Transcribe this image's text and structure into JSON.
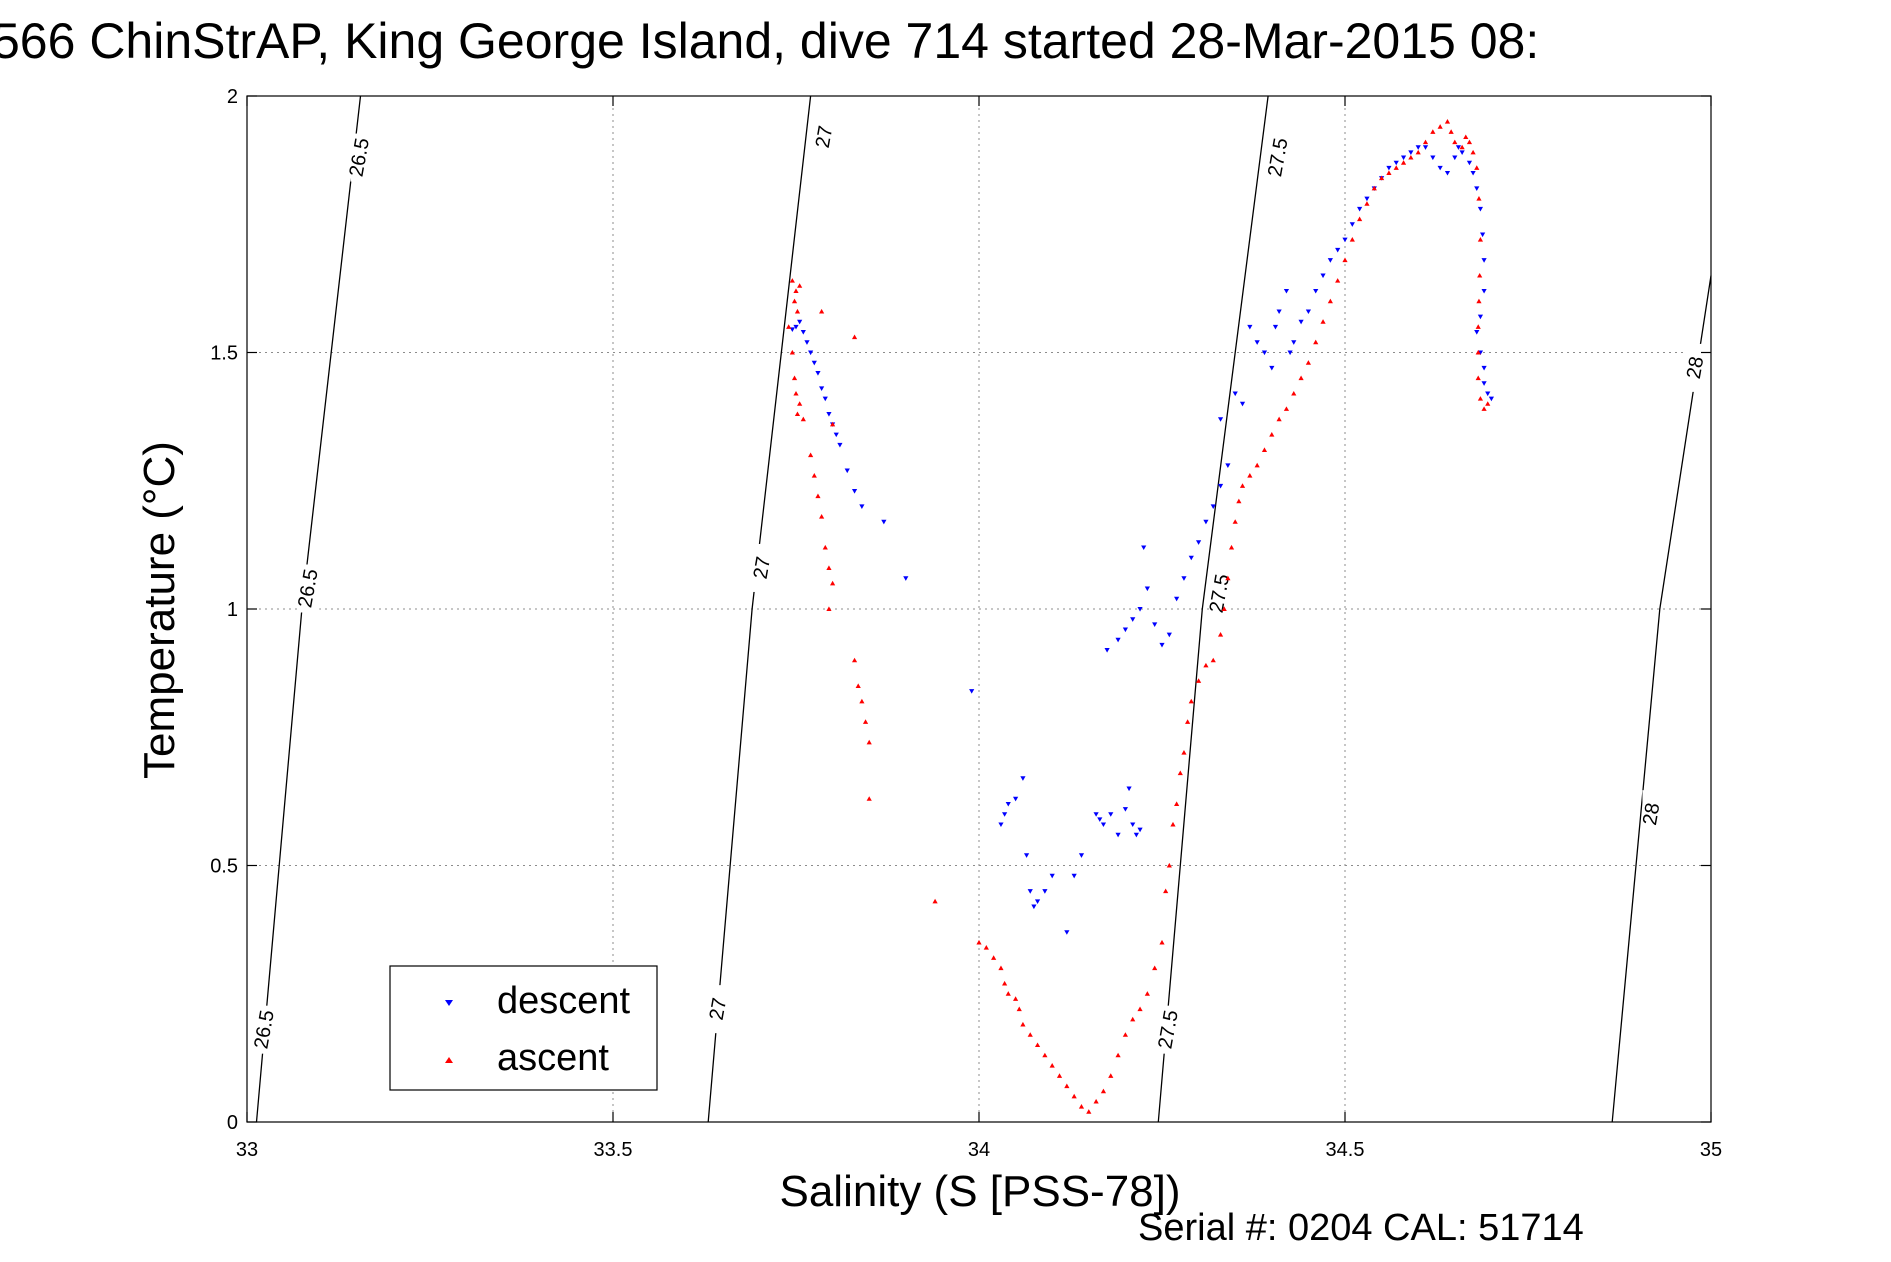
{
  "chart_data": {
    "type": "scatter",
    "title": "566 ChinStrAP, King George Island, dive 714 started 28-Mar-2015 08:",
    "xlabel": "Salinity (S [PSS-78])",
    "ylabel": "Temperature (°C)",
    "xlim": [
      33,
      35
    ],
    "ylim": [
      0,
      2
    ],
    "xticks": [
      33,
      33.5,
      34,
      34.5,
      35
    ],
    "yticks": [
      0,
      0.5,
      1,
      1.5,
      2
    ],
    "xtick_labels": [
      "33",
      "33.5",
      "34",
      "34.5",
      "35"
    ],
    "ytick_labels": [
      "0",
      "0.5",
      "1",
      "1.5",
      "2"
    ],
    "grid": true,
    "legend_position": "lower-left",
    "series": [
      {
        "name": "descent",
        "marker": "down-triangle",
        "color": "#0000ff",
        "points": [
          [
            33.745,
            1.545
          ],
          [
            33.75,
            1.55
          ],
          [
            33.755,
            1.56
          ],
          [
            33.76,
            1.54
          ],
          [
            33.765,
            1.52
          ],
          [
            33.77,
            1.5
          ],
          [
            33.775,
            1.48
          ],
          [
            33.78,
            1.46
          ],
          [
            33.785,
            1.43
          ],
          [
            33.79,
            1.41
          ],
          [
            33.795,
            1.38
          ],
          [
            33.8,
            1.36
          ],
          [
            33.805,
            1.34
          ],
          [
            33.81,
            1.32
          ],
          [
            33.82,
            1.27
          ],
          [
            33.83,
            1.23
          ],
          [
            33.84,
            1.2
          ],
          [
            33.87,
            1.17
          ],
          [
            33.9,
            1.06
          ],
          [
            33.99,
            0.84
          ],
          [
            34.03,
            0.58
          ],
          [
            34.035,
            0.6
          ],
          [
            34.04,
            0.62
          ],
          [
            34.05,
            0.63
          ],
          [
            34.06,
            0.67
          ],
          [
            34.065,
            0.52
          ],
          [
            34.07,
            0.45
          ],
          [
            34.075,
            0.42
          ],
          [
            34.08,
            0.43
          ],
          [
            34.09,
            0.45
          ],
          [
            34.1,
            0.48
          ],
          [
            34.12,
            0.37
          ],
          [
            34.13,
            0.48
          ],
          [
            34.14,
            0.52
          ],
          [
            34.16,
            0.6
          ],
          [
            34.165,
            0.59
          ],
          [
            34.17,
            0.58
          ],
          [
            34.18,
            0.6
          ],
          [
            34.19,
            0.56
          ],
          [
            34.2,
            0.61
          ],
          [
            34.205,
            0.65
          ],
          [
            34.21,
            0.58
          ],
          [
            34.215,
            0.56
          ],
          [
            34.22,
            0.57
          ],
          [
            34.175,
            0.92
          ],
          [
            34.19,
            0.94
          ],
          [
            34.2,
            0.96
          ],
          [
            34.21,
            0.98
          ],
          [
            34.22,
            1.0
          ],
          [
            34.225,
            1.12
          ],
          [
            34.23,
            1.04
          ],
          [
            34.24,
            0.97
          ],
          [
            34.25,
            0.93
          ],
          [
            34.26,
            0.95
          ],
          [
            34.27,
            1.02
          ],
          [
            34.28,
            1.06
          ],
          [
            34.29,
            1.1
          ],
          [
            34.3,
            1.13
          ],
          [
            34.31,
            1.17
          ],
          [
            34.32,
            1.2
          ],
          [
            34.33,
            1.24
          ],
          [
            34.33,
            1.37
          ],
          [
            34.34,
            1.28
          ],
          [
            34.35,
            1.42
          ],
          [
            34.36,
            1.4
          ],
          [
            34.37,
            1.55
          ],
          [
            34.38,
            1.52
          ],
          [
            34.39,
            1.5
          ],
          [
            34.4,
            1.47
          ],
          [
            34.405,
            1.55
          ],
          [
            34.41,
            1.58
          ],
          [
            34.42,
            1.62
          ],
          [
            34.425,
            1.5
          ],
          [
            34.43,
            1.52
          ],
          [
            34.44,
            1.56
          ],
          [
            34.45,
            1.58
          ],
          [
            34.46,
            1.62
          ],
          [
            34.47,
            1.65
          ],
          [
            34.48,
            1.68
          ],
          [
            34.49,
            1.7
          ],
          [
            34.5,
            1.72
          ],
          [
            34.51,
            1.75
          ],
          [
            34.52,
            1.78
          ],
          [
            34.53,
            1.8
          ],
          [
            34.54,
            1.82
          ],
          [
            34.55,
            1.84
          ],
          [
            34.56,
            1.86
          ],
          [
            34.57,
            1.87
          ],
          [
            34.58,
            1.88
          ],
          [
            34.59,
            1.89
          ],
          [
            34.6,
            1.9
          ],
          [
            34.61,
            1.9
          ],
          [
            34.62,
            1.88
          ],
          [
            34.63,
            1.86
          ],
          [
            34.64,
            1.85
          ],
          [
            34.65,
            1.88
          ],
          [
            34.655,
            1.9
          ],
          [
            34.66,
            1.89
          ],
          [
            34.67,
            1.87
          ],
          [
            34.675,
            1.85
          ],
          [
            34.68,
            1.82
          ],
          [
            34.685,
            1.78
          ],
          [
            34.688,
            1.73
          ],
          [
            34.69,
            1.68
          ],
          [
            34.69,
            1.62
          ],
          [
            34.685,
            1.57
          ],
          [
            34.68,
            1.54
          ],
          [
            34.685,
            1.5
          ],
          [
            34.69,
            1.47
          ],
          [
            34.69,
            1.44
          ],
          [
            34.695,
            1.42
          ],
          [
            34.7,
            1.41
          ]
        ]
      },
      {
        "name": "ascent",
        "marker": "up-triangle",
        "color": "#ff0000",
        "points": [
          [
            33.745,
            1.64
          ],
          [
            33.748,
            1.6
          ],
          [
            33.75,
            1.62
          ],
          [
            33.752,
            1.58
          ],
          [
            33.755,
            1.63
          ],
          [
            33.74,
            1.55
          ],
          [
            33.745,
            1.5
          ],
          [
            33.748,
            1.45
          ],
          [
            33.75,
            1.42
          ],
          [
            33.752,
            1.38
          ],
          [
            33.755,
            1.4
          ],
          [
            33.76,
            1.37
          ],
          [
            33.785,
            1.58
          ],
          [
            33.8,
            1.36
          ],
          [
            33.77,
            1.3
          ],
          [
            33.775,
            1.26
          ],
          [
            33.78,
            1.22
          ],
          [
            33.785,
            1.18
          ],
          [
            33.79,
            1.12
          ],
          [
            33.795,
            1.08
          ],
          [
            33.8,
            1.05
          ],
          [
            33.795,
            1.0
          ],
          [
            33.83,
            1.53
          ],
          [
            33.83,
            0.9
          ],
          [
            33.835,
            0.85
          ],
          [
            33.84,
            0.82
          ],
          [
            33.845,
            0.78
          ],
          [
            33.85,
            0.74
          ],
          [
            33.85,
            0.63
          ],
          [
            33.94,
            0.43
          ],
          [
            34.0,
            0.35
          ],
          [
            34.01,
            0.34
          ],
          [
            34.02,
            0.32
          ],
          [
            34.03,
            0.3
          ],
          [
            34.035,
            0.27
          ],
          [
            34.04,
            0.25
          ],
          [
            34.05,
            0.24
          ],
          [
            34.055,
            0.22
          ],
          [
            34.06,
            0.19
          ],
          [
            34.07,
            0.17
          ],
          [
            34.08,
            0.15
          ],
          [
            34.09,
            0.13
          ],
          [
            34.1,
            0.11
          ],
          [
            34.11,
            0.09
          ],
          [
            34.12,
            0.07
          ],
          [
            34.13,
            0.05
          ],
          [
            34.14,
            0.03
          ],
          [
            34.15,
            0.02
          ],
          [
            34.16,
            0.04
          ],
          [
            34.17,
            0.06
          ],
          [
            34.18,
            0.09
          ],
          [
            34.19,
            0.13
          ],
          [
            34.2,
            0.17
          ],
          [
            34.21,
            0.2
          ],
          [
            34.22,
            0.22
          ],
          [
            34.23,
            0.25
          ],
          [
            34.24,
            0.3
          ],
          [
            34.25,
            0.35
          ],
          [
            34.255,
            0.45
          ],
          [
            34.26,
            0.5
          ],
          [
            34.265,
            0.58
          ],
          [
            34.27,
            0.62
          ],
          [
            34.275,
            0.68
          ],
          [
            34.28,
            0.72
          ],
          [
            34.285,
            0.78
          ],
          [
            34.29,
            0.82
          ],
          [
            34.3,
            0.86
          ],
          [
            34.31,
            0.89
          ],
          [
            34.32,
            0.9
          ],
          [
            34.33,
            0.95
          ],
          [
            34.335,
            1.0
          ],
          [
            34.34,
            1.06
          ],
          [
            34.345,
            1.12
          ],
          [
            34.35,
            1.17
          ],
          [
            34.355,
            1.21
          ],
          [
            34.36,
            1.24
          ],
          [
            34.37,
            1.26
          ],
          [
            34.38,
            1.28
          ],
          [
            34.39,
            1.31
          ],
          [
            34.4,
            1.34
          ],
          [
            34.41,
            1.37
          ],
          [
            34.42,
            1.39
          ],
          [
            34.43,
            1.42
          ],
          [
            34.44,
            1.45
          ],
          [
            34.45,
            1.48
          ],
          [
            34.46,
            1.52
          ],
          [
            34.47,
            1.56
          ],
          [
            34.48,
            1.6
          ],
          [
            34.49,
            1.64
          ],
          [
            34.5,
            1.68
          ],
          [
            34.51,
            1.72
          ],
          [
            34.52,
            1.76
          ],
          [
            34.53,
            1.79
          ],
          [
            34.54,
            1.82
          ],
          [
            34.55,
            1.84
          ],
          [
            34.56,
            1.85
          ],
          [
            34.57,
            1.86
          ],
          [
            34.58,
            1.87
          ],
          [
            34.59,
            1.88
          ],
          [
            34.6,
            1.89
          ],
          [
            34.61,
            1.91
          ],
          [
            34.62,
            1.93
          ],
          [
            34.63,
            1.94
          ],
          [
            34.64,
            1.95
          ],
          [
            34.645,
            1.93
          ],
          [
            34.65,
            1.91
          ],
          [
            34.66,
            1.9
          ],
          [
            34.665,
            1.92
          ],
          [
            34.67,
            1.91
          ],
          [
            34.675,
            1.89
          ],
          [
            34.68,
            1.86
          ],
          [
            34.683,
            1.8
          ],
          [
            34.685,
            1.72
          ],
          [
            34.684,
            1.65
          ],
          [
            34.683,
            1.6
          ],
          [
            34.682,
            1.55
          ],
          [
            34.682,
            1.5
          ],
          [
            34.682,
            1.45
          ],
          [
            34.685,
            1.41
          ],
          [
            34.69,
            1.39
          ],
          [
            34.695,
            1.4
          ]
        ]
      }
    ],
    "isopycnals": [
      {
        "label": "26.5",
        "points": [
          [
            33.013,
            0
          ],
          [
            33.075,
            1.0
          ],
          [
            33.155,
            2
          ]
        ],
        "label_positions": [
          [
            33.025,
            0.18
          ],
          [
            33.085,
            1.04
          ],
          [
            33.155,
            1.88
          ]
        ]
      },
      {
        "label": "27",
        "points": [
          [
            33.63,
            0
          ],
          [
            33.69,
            1.0
          ],
          [
            33.77,
            2
          ]
        ],
        "label_positions": [
          [
            33.645,
            0.22
          ],
          [
            33.705,
            1.08
          ],
          [
            33.79,
            1.92
          ]
        ]
      },
      {
        "label": "27.5",
        "points": [
          [
            34.245,
            0
          ],
          [
            34.305,
            1.0
          ],
          [
            34.395,
            2
          ]
        ],
        "label_positions": [
          [
            34.26,
            0.18
          ],
          [
            34.33,
            1.03
          ],
          [
            34.41,
            1.88
          ]
        ]
      },
      {
        "label": "28",
        "points": [
          [
            34.865,
            0
          ],
          [
            34.93,
            1.0
          ],
          [
            35,
            1.65
          ]
        ],
        "label_positions": [
          [
            34.92,
            0.6
          ],
          [
            34.98,
            1.47
          ]
        ]
      }
    ]
  },
  "footer": {
    "serial_text": "Serial #: 0204  CAL: 51714"
  }
}
